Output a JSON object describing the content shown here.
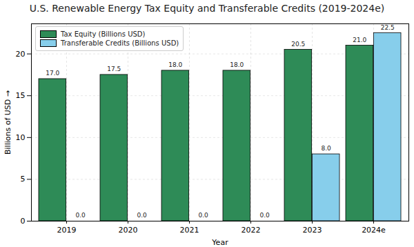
{
  "chart_data": {
    "type": "bar",
    "title": "U.S. Renewable Energy Tax Equity and Transferable Credits (2019-2024e)",
    "x_label": "Year",
    "y_label": "Billions of USD",
    "categories": [
      "2019",
      "2020",
      "2021",
      "2022",
      "2023",
      "2024e"
    ],
    "series": [
      {
        "name": "Tax Equity (Billions USD)",
        "color": "#2e8b57",
        "values": [
          17,
          17.5,
          18,
          18,
          20.5,
          21
        ],
        "value_labels": [
          "17.0",
          "17.5",
          "18.0",
          "18.0",
          "20.5",
          "21.0"
        ]
      },
      {
        "name": "Transferable Credits (Billions USD)",
        "color": "#87ceeb",
        "values": [
          0,
          0,
          0,
          0,
          8,
          22.5
        ],
        "value_labels": [
          "0.0",
          "0.0",
          "0.0",
          "0.0",
          "8.0",
          "22.5"
        ]
      }
    ],
    "ylim": [
      0,
      23.6
    ],
    "yticks": [
      0,
      5,
      10,
      15,
      20
    ],
    "grid": true,
    "legend": "upper left",
    "data_labels": true
  }
}
